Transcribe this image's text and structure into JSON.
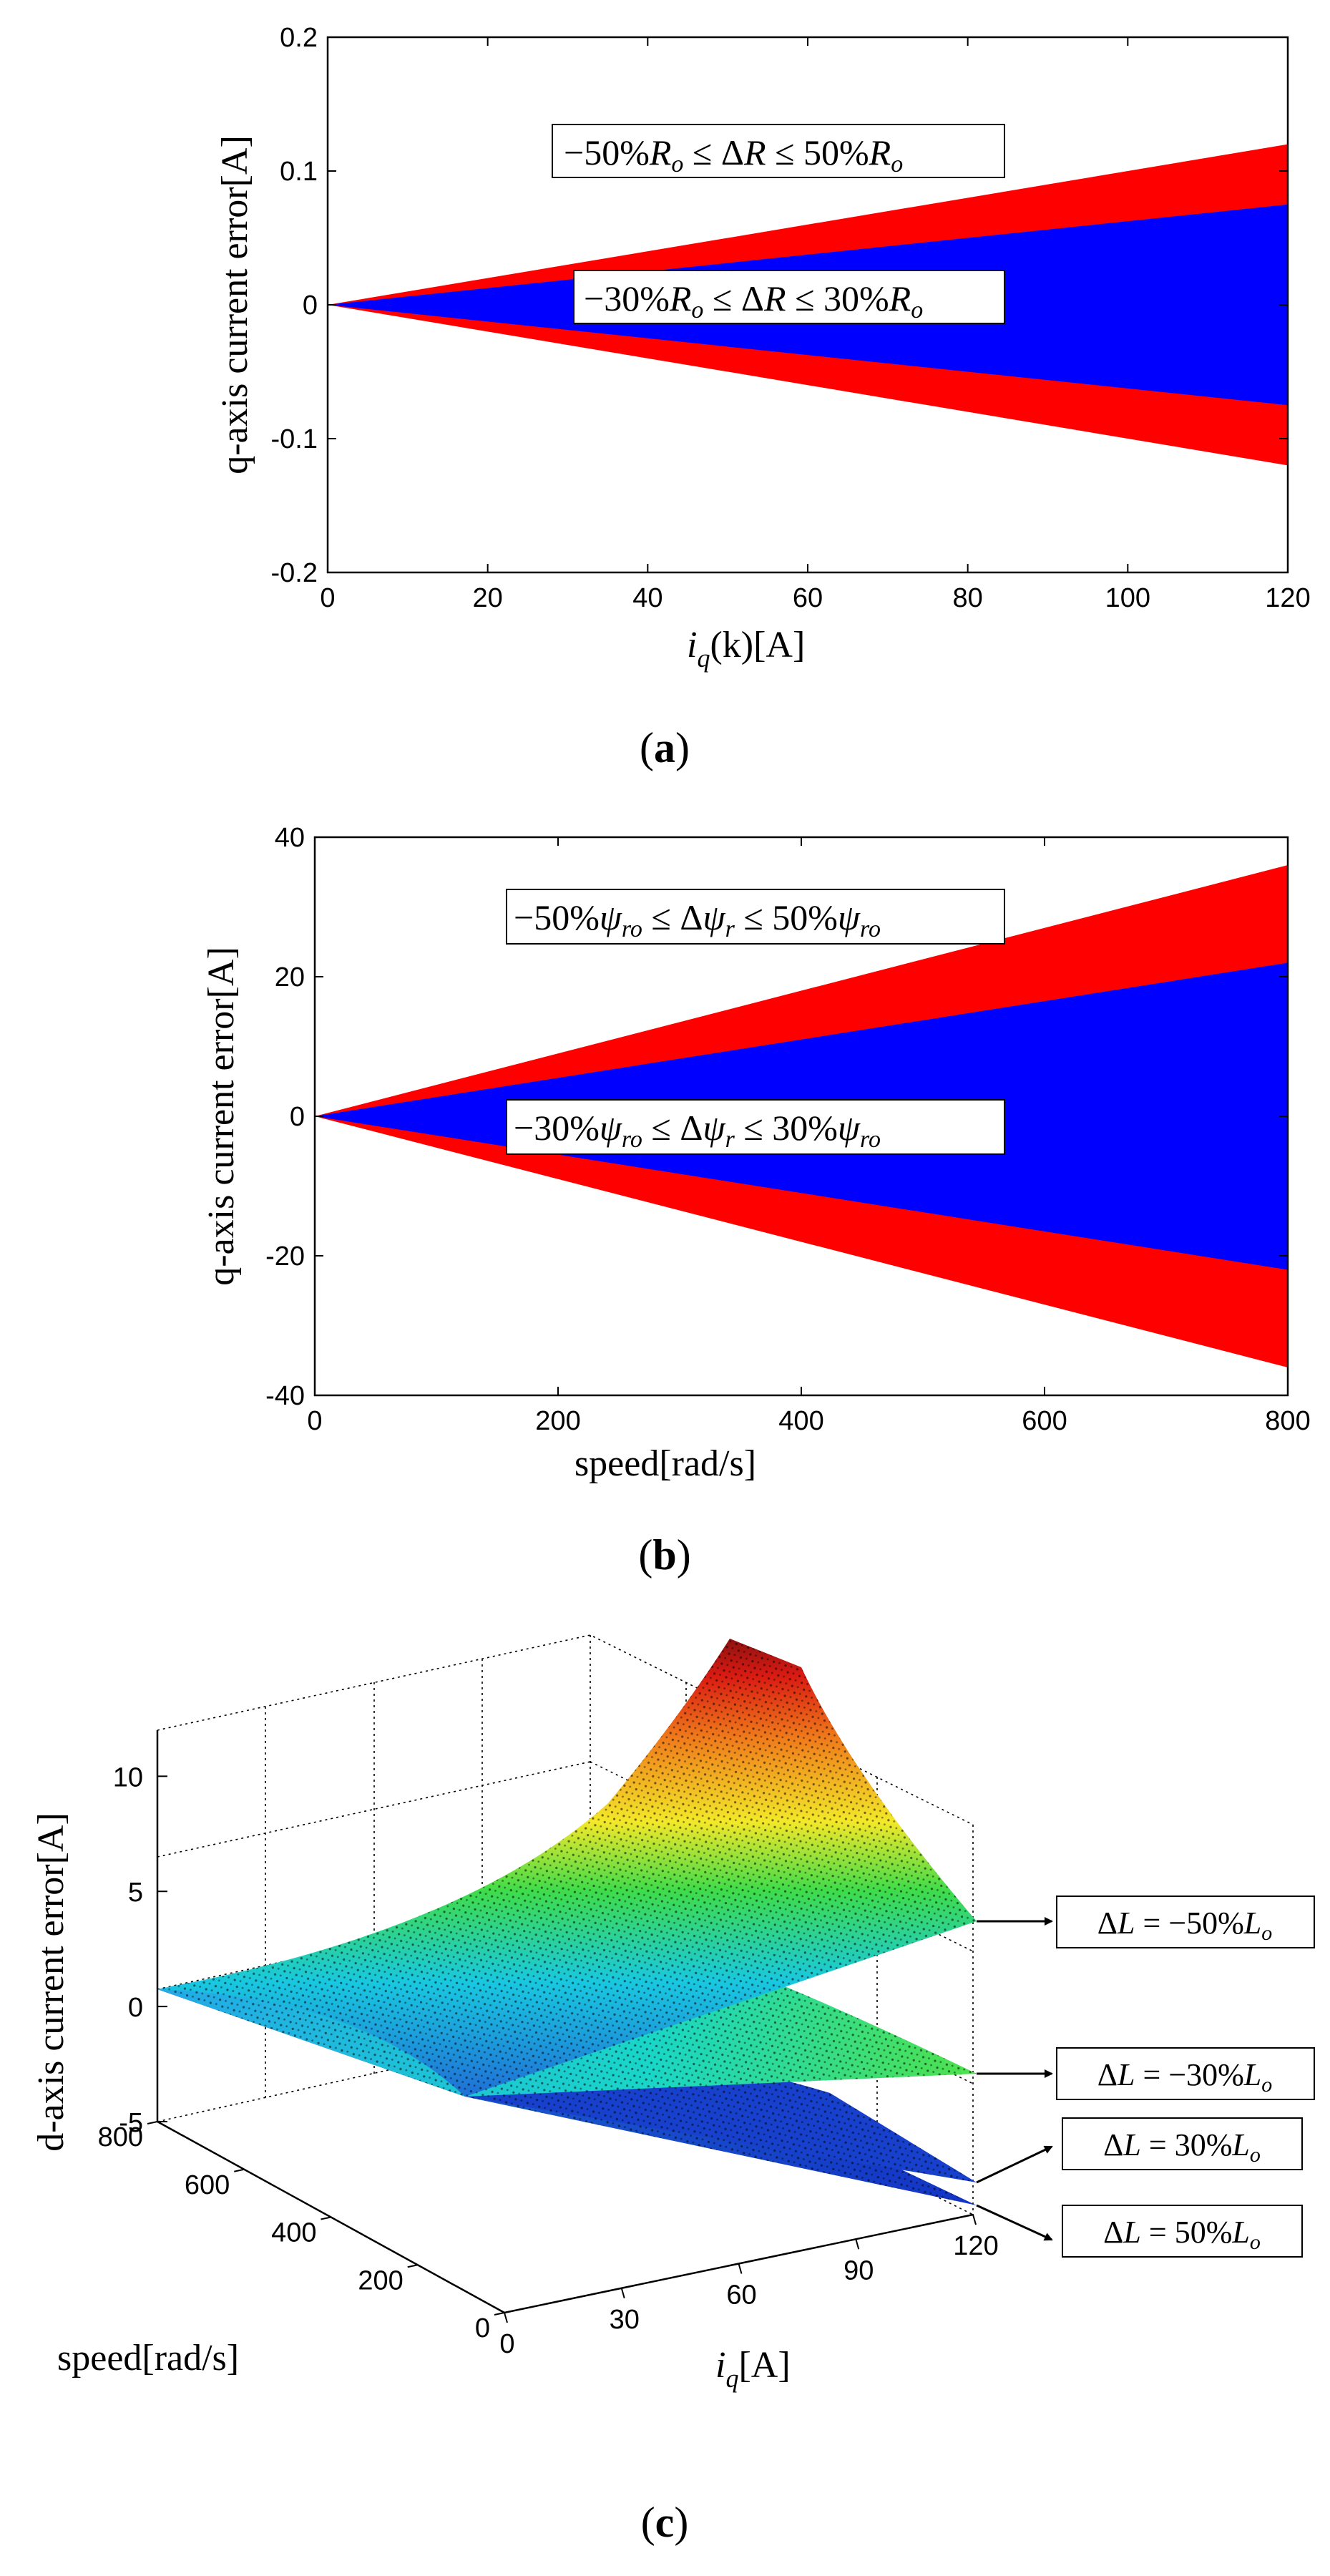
{
  "figure": {
    "caption_a": "a",
    "caption_b": "b",
    "caption_c": "c",
    "colors": {
      "outer": "#ff0000",
      "inner": "#0000ff"
    }
  },
  "chart_data": [
    {
      "type": "area",
      "id": "a",
      "xlabel_main": "i",
      "xlabel_sub": "q",
      "xlabel_rest": "(k)[A]",
      "ylabel": "q-axis current error[A]",
      "xlim": [
        0,
        120
      ],
      "ylim": [
        -0.2,
        0.2
      ],
      "xticks": [
        0,
        20,
        40,
        60,
        80,
        100,
        120
      ],
      "xtick_labels": [
        "0",
        "20",
        "40",
        "60",
        "80",
        "100",
        "120"
      ],
      "yticks": [
        -0.2,
        -0.1,
        0,
        0.1,
        0.2
      ],
      "ytick_labels": [
        "-0.2",
        "-0.1",
        "0",
        "0.1",
        "0.2"
      ],
      "x": [
        0,
        120
      ],
      "series": [
        {
          "name": "−50%Ro ≤ ΔR ≤ 50%Ro",
          "color": "#ff0000",
          "upper": [
            0,
            0.12
          ],
          "lower": [
            0,
            -0.12
          ]
        },
        {
          "name": "−30%Ro ≤ ΔR ≤ 30%Ro",
          "color": "#0000ff",
          "upper": [
            0,
            0.075
          ],
          "lower": [
            0,
            -0.075
          ]
        }
      ],
      "annotations": [
        {
          "text": "−50%Ro ≤ ΔR ≤ 50%Ro",
          "x": 107,
          "y": 0.11
        },
        {
          "text": "−30%Ro ≤ ΔR ≤ 30%Ro",
          "x": 90,
          "y": 0.003
        }
      ]
    },
    {
      "type": "area",
      "id": "b",
      "xlabel": "speed[rad/s]",
      "ylabel": "q-axis current error[A]",
      "xlim": [
        0,
        800
      ],
      "ylim": [
        -40,
        40
      ],
      "xticks": [
        0,
        200,
        400,
        600,
        800
      ],
      "xtick_labels": [
        "0",
        "200",
        "400",
        "600",
        "800"
      ],
      "yticks": [
        -40,
        -20,
        0,
        20,
        40
      ],
      "ytick_labels": [
        "-40",
        "-20",
        "0",
        "20",
        "40"
      ],
      "x": [
        0,
        800
      ],
      "series": [
        {
          "name": "−50%ψro ≤ Δψr ≤ 50%ψro",
          "color": "#ff0000",
          "upper": [
            0,
            36
          ],
          "lower": [
            0,
            -36
          ]
        },
        {
          "name": "−30%ψro ≤ Δψr ≤ 30%ψro",
          "color": "#0000ff",
          "upper": [
            0,
            22
          ],
          "lower": [
            0,
            -22
          ]
        }
      ],
      "annotations": [
        {
          "text": "−50%ψro ≤ Δψr ≤ 50%ψro",
          "x": 600,
          "y": 30
        },
        {
          "text": "−30%ψro ≤ Δψr ≤ 30%ψro",
          "x": 600,
          "y": 0
        }
      ]
    },
    {
      "type": "surface",
      "id": "c",
      "xlabel_main": "i",
      "xlabel_sub": "q",
      "xlabel_rest": "[A]",
      "ylabel": "speed[rad/s]",
      "zlabel": "d-axis current error[A]",
      "iq_ticks": [
        0,
        30,
        60,
        90,
        120
      ],
      "speed_ticks": [
        0,
        200,
        400,
        600,
        800
      ],
      "z_ticks": [
        -5,
        0,
        5,
        10
      ],
      "z_tick_labels": [
        "-5",
        "0",
        "5",
        "10"
      ],
      "iq_range": [
        0,
        120
      ],
      "speed_range": [
        0,
        800
      ],
      "z_range": [
        -5,
        12
      ],
      "surfaces": [
        {
          "label": "ΔL = −50%Lo",
          "corner_max_z": 11.5
        },
        {
          "label": "ΔL = −30%Lo",
          "corner_max_z": 4.5
        },
        {
          "label": "ΔL = 30%Lo",
          "corner_max_z": -3.8
        },
        {
          "label": "ΔL = 50%Lo",
          "corner_max_z": -5.3
        }
      ]
    }
  ]
}
